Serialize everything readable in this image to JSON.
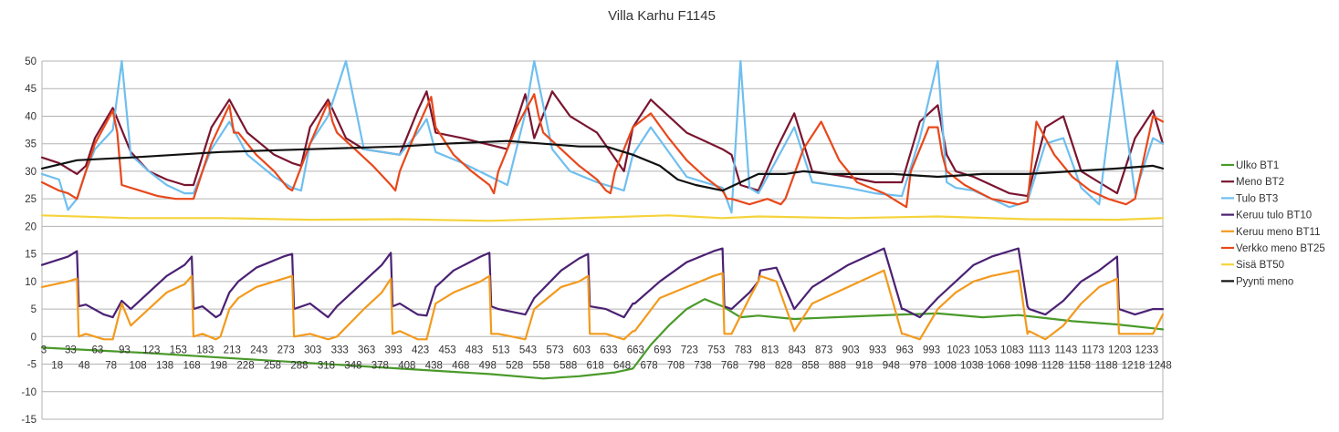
{
  "chart_data": {
    "type": "line",
    "title": "Villa Karhu F1145",
    "xlabel": "",
    "ylabel": "",
    "ylim": [
      -15,
      50
    ],
    "yticks": [
      50,
      45,
      40,
      35,
      30,
      25,
      20,
      15,
      10,
      5,
      0,
      -5,
      -10,
      -15
    ],
    "xlim": [
      1,
      1251
    ],
    "xticks_upper": [
      3,
      33,
      63,
      93,
      123,
      153,
      183,
      213,
      243,
      273,
      303,
      333,
      363,
      393,
      423,
      453,
      483,
      513,
      543,
      573,
      603,
      633,
      663,
      693,
      723,
      753,
      783,
      813,
      843,
      873,
      903,
      933,
      963,
      993,
      1023,
      1053,
      1083,
      1113,
      1143,
      1173,
      1203,
      1233
    ],
    "xticks_lower": [
      18,
      48,
      78,
      108,
      138,
      168,
      198,
      228,
      258,
      288,
      318,
      348,
      378,
      408,
      438,
      468,
      498,
      528,
      558,
      588,
      618,
      648,
      678,
      708,
      738,
      768,
      798,
      828,
      858,
      888,
      918,
      948,
      978,
      1008,
      1038,
      1068,
      1098,
      1128,
      1158,
      1188,
      1218,
      1248
    ],
    "grid": true,
    "legend_position": "right",
    "series": [
      {
        "name": "Ulko BT1",
        "color": "#4a9a2a",
        "x": [
          1,
          60,
          120,
          200,
          300,
          400,
          500,
          560,
          600,
          640,
          660,
          680,
          700,
          720,
          740,
          760,
          780,
          800,
          840,
          900,
          960,
          1000,
          1050,
          1090,
          1150,
          1200,
          1251
        ],
        "y": [
          -2,
          -2.5,
          -3,
          -3.8,
          -4.8,
          -5.8,
          -6.8,
          -7.6,
          -7.2,
          -6.5,
          -5.8,
          -1.5,
          2,
          5,
          6.8,
          5.5,
          3.5,
          3.8,
          3.2,
          3.6,
          4,
          4.2,
          3.5,
          3.9,
          2.8,
          2.2,
          1.3
        ]
      },
      {
        "name": "Meno BT2",
        "color": "#7a1530",
        "x": [
          1,
          20,
          30,
          40,
          50,
          60,
          80,
          100,
          120,
          140,
          160,
          170,
          190,
          210,
          230,
          260,
          280,
          290,
          300,
          320,
          340,
          360,
          400,
          420,
          430,
          440,
          470,
          520,
          540,
          550,
          570,
          590,
          620,
          650,
          660,
          680,
          720,
          760,
          770,
          780,
          790,
          800,
          820,
          840,
          860,
          900,
          930,
          960,
          980,
          1000,
          1010,
          1020,
          1040,
          1080,
          1100,
          1120,
          1140,
          1160,
          1180,
          1200,
          1220,
          1240,
          1251
        ],
        "y": [
          32.5,
          31.5,
          30.5,
          29.5,
          31,
          36,
          41.5,
          33.5,
          30,
          28.5,
          27.5,
          27.5,
          38,
          43,
          37,
          33,
          31.5,
          31,
          38,
          43,
          36,
          34,
          33,
          41,
          44.5,
          37,
          36,
          34,
          44,
          36,
          44.5,
          40,
          37,
          30,
          38,
          43,
          37,
          34,
          33,
          27.5,
          27,
          26.5,
          34,
          40.5,
          30,
          29,
          28,
          28,
          39,
          42,
          33,
          30,
          29,
          26,
          25.5,
          38,
          40,
          30,
          28,
          26,
          36,
          41,
          35
        ]
      },
      {
        "name": "Tulo BT3",
        "color": "#6fbfef",
        "x": [
          1,
          20,
          30,
          40,
          50,
          60,
          80,
          90,
          100,
          120,
          140,
          160,
          170,
          190,
          210,
          230,
          260,
          280,
          290,
          300,
          320,
          340,
          360,
          400,
          420,
          430,
          440,
          470,
          520,
          540,
          550,
          570,
          590,
          620,
          650,
          660,
          680,
          720,
          760,
          770,
          780,
          790,
          800,
          820,
          840,
          860,
          900,
          930,
          960,
          980,
          1000,
          1010,
          1020,
          1040,
          1080,
          1100,
          1120,
          1140,
          1160,
          1180,
          1200,
          1220,
          1240,
          1251
        ],
        "y": [
          29.5,
          28.5,
          23,
          25,
          30,
          34,
          37.5,
          50,
          33,
          30,
          27.5,
          26,
          26,
          34,
          39,
          33,
          29,
          27,
          26.5,
          35,
          40,
          50,
          34,
          33,
          37,
          39.5,
          33.5,
          31.5,
          27.5,
          40.5,
          50,
          34,
          30,
          28,
          26.5,
          33,
          38,
          29,
          27,
          22.5,
          50,
          27,
          26,
          32,
          38,
          28,
          27,
          26,
          25.5,
          36,
          50,
          28,
          27,
          26.5,
          23.5,
          24.5,
          35,
          36,
          27,
          24,
          50,
          26,
          36,
          35
        ]
      },
      {
        "name": "Keruu tulo BT10",
        "color": "#4b2173",
        "x": [
          1,
          30,
          40,
          42,
          50,
          70,
          80,
          90,
          100,
          120,
          140,
          160,
          168,
          170,
          180,
          195,
          200,
          210,
          220,
          240,
          270,
          280,
          282,
          300,
          320,
          330,
          360,
          380,
          390,
          392,
          400,
          420,
          430,
          440,
          460,
          490,
          500,
          502,
          510,
          540,
          550,
          580,
          600,
          610,
          612,
          630,
          650,
          660,
          662,
          690,
          720,
          750,
          760,
          762,
          770,
          790,
          800,
          802,
          820,
          840,
          860,
          900,
          940,
          960,
          962,
          980,
          1000,
          1020,
          1040,
          1060,
          1090,
          1100,
          1102,
          1120,
          1140,
          1160,
          1180,
          1200,
          1202,
          1220,
          1240,
          1251
        ],
        "y": [
          13,
          14.5,
          15.5,
          5.5,
          5.8,
          4,
          3.5,
          6.5,
          5,
          8,
          11,
          13,
          14.5,
          5,
          5.5,
          3.5,
          4,
          8,
          10,
          12.5,
          14.5,
          15,
          5,
          6,
          3.5,
          5.5,
          10,
          13,
          15.2,
          5.5,
          6,
          4,
          3.8,
          9,
          12,
          14.5,
          15.2,
          5.5,
          5,
          4,
          7,
          12,
          14.2,
          15,
          5.5,
          5,
          3.5,
          6,
          6,
          10,
          13.5,
          15.5,
          16,
          5.5,
          5,
          8,
          10,
          12,
          12.5,
          5,
          9,
          13,
          16,
          5,
          5,
          3.5,
          7,
          10,
          13,
          14.5,
          16,
          5.5,
          5,
          4,
          6.5,
          10,
          12,
          14.5,
          5,
          4,
          5,
          5
        ]
      },
      {
        "name": "Keruu meno BT11",
        "color": "#f29a1d",
        "x": [
          1,
          30,
          40,
          42,
          50,
          70,
          80,
          90,
          100,
          120,
          140,
          160,
          168,
          170,
          180,
          195,
          200,
          210,
          220,
          240,
          270,
          280,
          282,
          300,
          320,
          330,
          360,
          380,
          390,
          392,
          400,
          420,
          430,
          440,
          460,
          490,
          500,
          502,
          510,
          540,
          550,
          580,
          600,
          610,
          612,
          630,
          650,
          660,
          662,
          690,
          720,
          750,
          760,
          762,
          770,
          790,
          800,
          802,
          820,
          840,
          860,
          900,
          940,
          960,
          962,
          980,
          1000,
          1020,
          1040,
          1060,
          1090,
          1100,
          1102,
          1120,
          1140,
          1160,
          1180,
          1200,
          1202,
          1220,
          1240,
          1251
        ],
        "y": [
          9,
          10,
          10.5,
          0,
          0.5,
          -0.5,
          -0.5,
          6,
          2,
          5,
          8,
          9.5,
          11,
          0,
          0.5,
          -0.5,
          0,
          5,
          7,
          9,
          10.5,
          11,
          0,
          0.5,
          -0.5,
          0,
          5,
          8,
          10.5,
          0.5,
          1,
          -0.5,
          -0.5,
          6,
          8,
          10,
          11,
          0.5,
          0.5,
          -0.5,
          5,
          9,
          10,
          11,
          0.5,
          0.5,
          -0.5,
          1,
          1,
          7,
          9,
          11,
          11.5,
          0.5,
          0.5,
          7,
          10,
          11,
          10,
          1,
          6,
          9,
          12,
          0.5,
          0.5,
          -0.5,
          5,
          8,
          10,
          11,
          12,
          0.5,
          1,
          -0.5,
          2,
          6,
          9,
          10.5,
          0.5,
          0.5,
          0.5,
          4
        ]
      },
      {
        "name": "Verkko meno BT25",
        "color": "#e8481b",
        "x": [
          1,
          20,
          30,
          40,
          50,
          60,
          80,
          85,
          90,
          110,
          130,
          150,
          165,
          170,
          190,
          210,
          215,
          220,
          240,
          260,
          275,
          280,
          300,
          320,
          325,
          330,
          350,
          370,
          390,
          395,
          400,
          420,
          435,
          440,
          460,
          480,
          500,
          505,
          510,
          530,
          550,
          555,
          560,
          580,
          600,
          620,
          630,
          635,
          640,
          660,
          680,
          700,
          720,
          740,
          760,
          765,
          770,
          790,
          810,
          825,
          830,
          850,
          870,
          890,
          910,
          940,
          960,
          965,
          970,
          990,
          1000,
          1005,
          1010,
          1030,
          1060,
          1090,
          1100,
          1105,
          1110,
          1130,
          1150,
          1170,
          1190,
          1200,
          1210,
          1220,
          1240,
          1251
        ],
        "y": [
          28,
          26.5,
          26,
          25,
          30,
          35,
          41,
          37,
          27.5,
          26.5,
          25.5,
          25,
          25,
          25,
          35,
          42,
          37,
          37,
          33,
          30,
          27,
          26.5,
          35,
          42.5,
          39,
          37,
          34,
          31,
          27.5,
          26.5,
          30,
          38,
          43.5,
          38,
          33,
          30,
          27.5,
          26,
          30,
          38,
          44,
          40,
          37,
          34,
          31,
          28.5,
          26.5,
          26,
          30,
          38,
          40.5,
          36,
          32,
          29,
          26.5,
          25,
          25,
          24,
          25,
          24,
          25,
          34,
          39,
          32,
          28,
          26,
          24,
          23.5,
          30,
          38,
          38,
          33,
          30,
          27.5,
          25,
          24,
          24.5,
          32,
          39,
          33,
          29,
          26.5,
          25,
          24.5,
          24,
          25,
          40,
          39
        ]
      },
      {
        "name": "Sisä BT50",
        "color": "#f5d33a",
        "x": [
          1,
          100,
          200,
          300,
          400,
          500,
          600,
          700,
          760,
          800,
          900,
          1000,
          1100,
          1200,
          1251
        ],
        "y": [
          22,
          21.5,
          21.5,
          21.2,
          21.3,
          21,
          21.5,
          22,
          21.5,
          21.8,
          21.5,
          21.8,
          21.3,
          21.2,
          21.5
        ]
      },
      {
        "name": "Pyynti meno",
        "color": "#111111",
        "x": [
          1,
          40,
          100,
          200,
          300,
          400,
          450,
          520,
          560,
          600,
          630,
          660,
          690,
          710,
          730,
          760,
          780,
          800,
          830,
          850,
          880,
          900,
          950,
          1000,
          1050,
          1100,
          1150,
          1200,
          1240,
          1251
        ],
        "y": [
          30.5,
          32,
          32.5,
          33.5,
          34,
          34.5,
          35,
          35.5,
          35,
          34.5,
          34.5,
          33,
          31,
          28.5,
          27.5,
          26.5,
          28,
          29.5,
          29.5,
          30,
          29.5,
          29.5,
          29.5,
          29,
          29.5,
          29.5,
          30,
          30.5,
          31,
          30.5
        ]
      }
    ]
  }
}
